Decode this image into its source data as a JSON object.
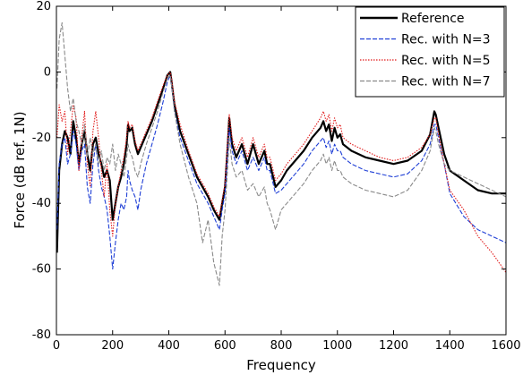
{
  "chart_data": {
    "type": "line",
    "xlabel": "Frequency",
    "ylabel": "Force (dB ref. 1N)",
    "xlim": [
      0,
      1600
    ],
    "ylim": [
      -80,
      20
    ],
    "xticks": [
      0,
      200,
      400,
      600,
      800,
      1000,
      1200,
      1400,
      1600
    ],
    "yticks": [
      -80,
      -60,
      -40,
      -20,
      0,
      20
    ],
    "grid": false,
    "legend_position": "top-right",
    "series": [
      {
        "name": "Reference",
        "color": "#000000",
        "style": "solid",
        "x": [
          2,
          10,
          20,
          30,
          40,
          50,
          60,
          70,
          80,
          90,
          100,
          110,
          120,
          130,
          140,
          150,
          160,
          170,
          180,
          190,
          200,
          210,
          220,
          230,
          240,
          250,
          255,
          260,
          270,
          280,
          290,
          300,
          320,
          340,
          360,
          380,
          395,
          405,
          410,
          420,
          440,
          470,
          500,
          520,
          540,
          560,
          580,
          590,
          600,
          610,
          615,
          625,
          640,
          660,
          680,
          700,
          720,
          740,
          750,
          760,
          780,
          800,
          820,
          850,
          880,
          910,
          940,
          950,
          960,
          970,
          980,
          990,
          1000,
          1010,
          1020,
          1050,
          1100,
          1150,
          1200,
          1250,
          1300,
          1330,
          1345,
          1350,
          1360,
          1380,
          1400,
          1450,
          1500,
          1550,
          1600
        ],
        "values": [
          -55,
          -30,
          -22,
          -18,
          -20,
          -25,
          -15,
          -20,
          -28,
          -22,
          -18,
          -25,
          -30,
          -22,
          -20,
          -25,
          -28,
          -32,
          -30,
          -33,
          -45,
          -40,
          -35,
          -32,
          -28,
          -22,
          -16,
          -18,
          -17,
          -22,
          -25,
          -23,
          -19,
          -15,
          -10,
          -5,
          -1,
          0,
          -3,
          -10,
          -18,
          -25,
          -32,
          -35,
          -38,
          -42,
          -45,
          -40,
          -35,
          -22,
          -14,
          -22,
          -26,
          -22,
          -28,
          -22,
          -28,
          -24,
          -28,
          -28,
          -35,
          -33,
          -30,
          -27,
          -24,
          -20,
          -17,
          -15,
          -18,
          -16,
          -21,
          -17,
          -20,
          -19,
          -22,
          -24,
          -26,
          -27,
          -28,
          -27,
          -24,
          -19,
          -12,
          -13,
          -17,
          -25,
          -30,
          -33,
          -36,
          -37,
          -37
        ]
      },
      {
        "name": "Rec. with N=3",
        "color": "#1f3fd6",
        "style": "dash",
        "x": [
          2,
          10,
          20,
          30,
          40,
          50,
          60,
          70,
          80,
          90,
          100,
          110,
          120,
          130,
          140,
          150,
          160,
          170,
          180,
          190,
          200,
          210,
          220,
          230,
          240,
          250,
          255,
          260,
          270,
          280,
          290,
          300,
          320,
          340,
          360,
          380,
          395,
          405,
          410,
          420,
          440,
          470,
          500,
          520,
          540,
          560,
          580,
          590,
          600,
          610,
          615,
          625,
          640,
          660,
          680,
          700,
          720,
          740,
          750,
          760,
          780,
          800,
          820,
          850,
          880,
          910,
          940,
          950,
          960,
          970,
          980,
          990,
          1000,
          1010,
          1020,
          1050,
          1100,
          1150,
          1200,
          1250,
          1300,
          1330,
          1345,
          1350,
          1360,
          1380,
          1400,
          1450,
          1500,
          1550,
          1600
        ],
        "values": [
          -48,
          -28,
          -22,
          -20,
          -28,
          -25,
          -18,
          -22,
          -30,
          -24,
          -22,
          -35,
          -40,
          -28,
          -22,
          -30,
          -35,
          -38,
          -42,
          -50,
          -60,
          -52,
          -45,
          -40,
          -42,
          -38,
          -30,
          -33,
          -36,
          -38,
          -42,
          -36,
          -28,
          -22,
          -16,
          -9,
          -3,
          -1,
          -4,
          -12,
          -20,
          -27,
          -34,
          -37,
          -40,
          -44,
          -48,
          -42,
          -37,
          -24,
          -17,
          -24,
          -28,
          -24,
          -30,
          -26,
          -30,
          -26,
          -30,
          -30,
          -37,
          -36,
          -34,
          -31,
          -28,
          -24,
          -21,
          -20,
          -23,
          -21,
          -25,
          -22,
          -24,
          -24,
          -26,
          -28,
          -30,
          -31,
          -32,
          -31,
          -27,
          -22,
          -16,
          -16,
          -20,
          -28,
          -37,
          -44,
          -48,
          -50,
          -52
        ]
      },
      {
        "name": "Rec. with N=5",
        "color": "#e11b1b",
        "style": "dot",
        "x": [
          2,
          10,
          20,
          30,
          40,
          50,
          60,
          70,
          80,
          90,
          100,
          110,
          120,
          130,
          140,
          150,
          160,
          170,
          180,
          190,
          200,
          210,
          220,
          230,
          240,
          250,
          255,
          260,
          270,
          280,
          290,
          300,
          320,
          340,
          360,
          380,
          395,
          405,
          410,
          420,
          440,
          470,
          500,
          520,
          540,
          560,
          580,
          590,
          600,
          610,
          615,
          625,
          640,
          660,
          680,
          700,
          720,
          740,
          750,
          760,
          780,
          800,
          820,
          850,
          880,
          910,
          940,
          950,
          960,
          970,
          980,
          990,
          1000,
          1010,
          1020,
          1050,
          1100,
          1150,
          1200,
          1250,
          1300,
          1330,
          1345,
          1350,
          1360,
          1380,
          1400,
          1450,
          1500,
          1550,
          1600
        ],
        "values": [
          -20,
          -10,
          -15,
          -12,
          -25,
          -18,
          -10,
          -14,
          -30,
          -20,
          -12,
          -28,
          -35,
          -18,
          -12,
          -20,
          -30,
          -38,
          -28,
          -42,
          -50,
          -40,
          -35,
          -30,
          -26,
          -20,
          -15,
          -17,
          -16,
          -21,
          -24,
          -22,
          -18,
          -14,
          -9,
          -4,
          -1,
          0,
          -2,
          -9,
          -16,
          -24,
          -31,
          -34,
          -37,
          -41,
          -44,
          -39,
          -34,
          -20,
          -13,
          -20,
          -24,
          -20,
          -26,
          -20,
          -26,
          -22,
          -26,
          -26,
          -33,
          -31,
          -28,
          -25,
          -22,
          -18,
          -14,
          -12,
          -15,
          -13,
          -18,
          -14,
          -17,
          -16,
          -20,
          -22,
          -24,
          -26,
          -27,
          -26,
          -23,
          -19,
          -14,
          -14,
          -19,
          -28,
          -36,
          -42,
          -50,
          -55,
          -61
        ]
      },
      {
        "name": "Rec. with N=7",
        "color": "#8a8a8a",
        "style": "dash",
        "x": [
          2,
          10,
          20,
          30,
          40,
          50,
          60,
          70,
          80,
          90,
          100,
          110,
          120,
          130,
          140,
          150,
          160,
          170,
          180,
          190,
          200,
          210,
          220,
          230,
          240,
          250,
          255,
          260,
          270,
          280,
          290,
          300,
          320,
          340,
          360,
          380,
          395,
          405,
          410,
          420,
          440,
          470,
          500,
          520,
          540,
          560,
          580,
          590,
          600,
          610,
          615,
          625,
          640,
          660,
          680,
          700,
          720,
          740,
          750,
          760,
          780,
          800,
          820,
          850,
          880,
          910,
          940,
          950,
          960,
          970,
          980,
          990,
          1000,
          1010,
          1020,
          1050,
          1100,
          1150,
          1200,
          1250,
          1300,
          1330,
          1345,
          1350,
          1360,
          1380,
          1400,
          1450,
          1500,
          1550,
          1600
        ],
        "values": [
          -5,
          10,
          15,
          5,
          -5,
          -12,
          -8,
          -15,
          -18,
          -22,
          -16,
          -26,
          -20,
          -25,
          -22,
          -28,
          -24,
          -30,
          -26,
          -28,
          -22,
          -30,
          -25,
          -28,
          -32,
          -26,
          -22,
          -24,
          -26,
          -30,
          -32,
          -28,
          -22,
          -17,
          -12,
          -6,
          -2,
          -1,
          -4,
          -12,
          -22,
          -32,
          -40,
          -52,
          -45,
          -58,
          -65,
          -50,
          -42,
          -28,
          -20,
          -28,
          -32,
          -30,
          -36,
          -34,
          -38,
          -35,
          -40,
          -42,
          -48,
          -42,
          -40,
          -37,
          -34,
          -30,
          -27,
          -25,
          -28,
          -26,
          -30,
          -27,
          -30,
          -30,
          -32,
          -34,
          -36,
          -37,
          -38,
          -36,
          -30,
          -24,
          -17,
          -18,
          -22,
          -28,
          -30,
          -32,
          -34,
          -36,
          -38
        ]
      }
    ]
  }
}
